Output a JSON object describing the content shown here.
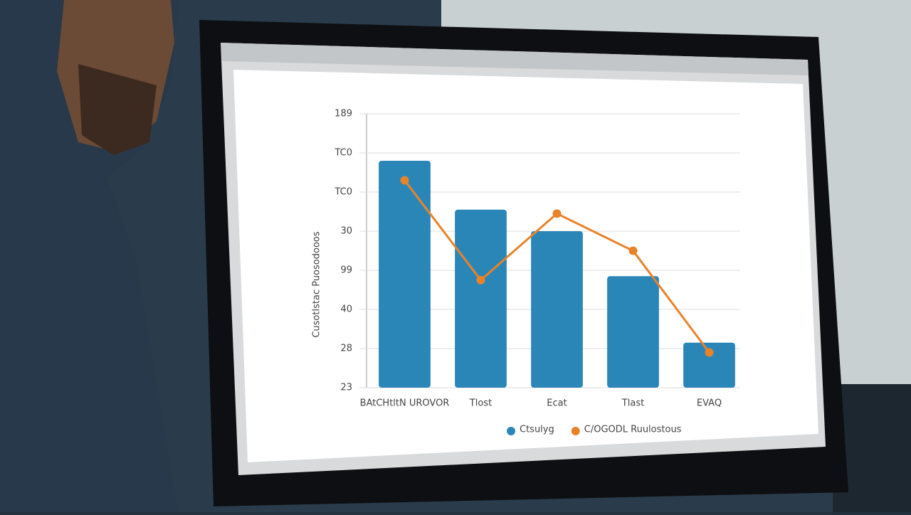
{
  "chart_data": {
    "type": "bar",
    "y_label": "Cusotlstac Puosodooos",
    "categories": [
      "BAtCHtltN UROVOR",
      "Tlost",
      "Ecat",
      "Tlast",
      "EVAQ"
    ],
    "series": [
      {
        "name": "Ctsulyg",
        "type": "bar",
        "color": "#2b86b8",
        "values": [
          5.8,
          4.55,
          4.0,
          2.85,
          1.15
        ]
      },
      {
        "name": "C/OGODL Ruulostous",
        "type": "line",
        "color": "#e8832a",
        "values": [
          5.3,
          2.75,
          4.45,
          3.5,
          0.9
        ]
      }
    ],
    "ylim": [
      0,
      7
    ],
    "yticks": [
      {
        "value": 0,
        "label": "23"
      },
      {
        "value": 1,
        "label": "28"
      },
      {
        "value": 2,
        "label": "40"
      },
      {
        "value": 3,
        "label": "99"
      },
      {
        "value": 4,
        "label": "30"
      },
      {
        "value": 5,
        "label": "TC0"
      },
      {
        "value": 6,
        "label": "TC0"
      },
      {
        "value": 7,
        "label": "189"
      }
    ],
    "grid": true
  }
}
